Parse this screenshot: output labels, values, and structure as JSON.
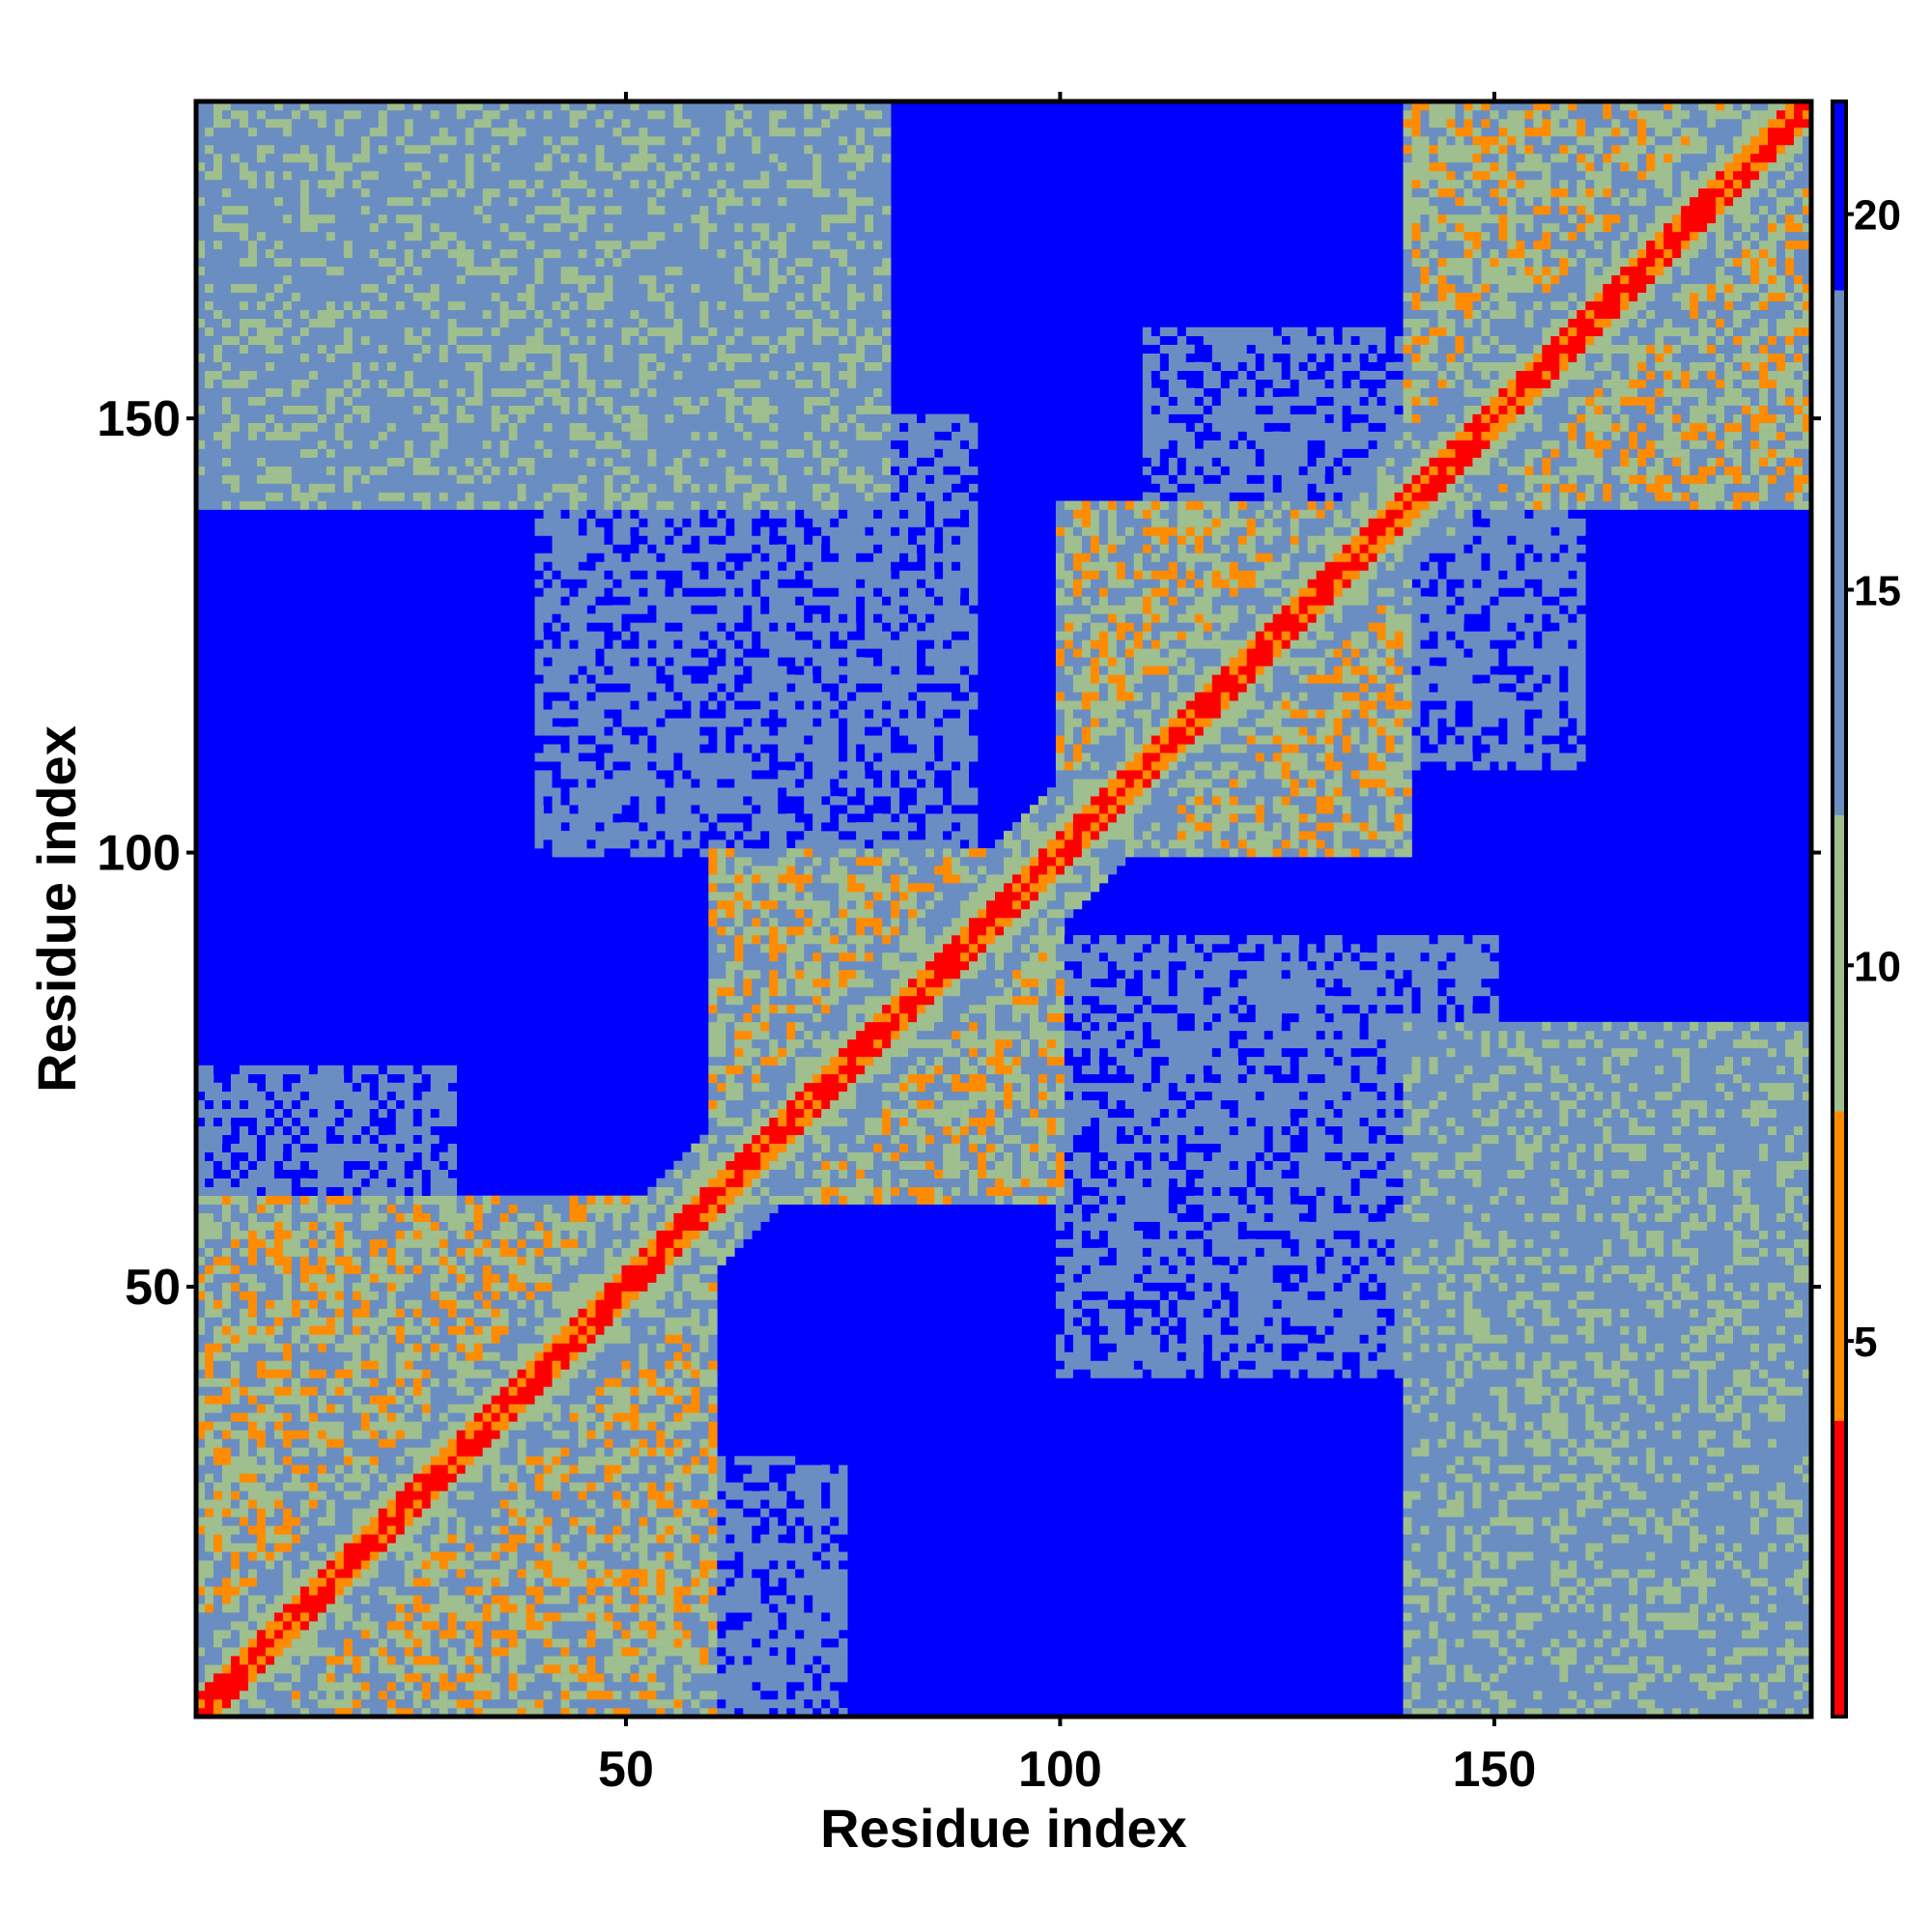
{
  "chart_data": {
    "type": "heatmap",
    "title": "",
    "xlabel": "Residue index",
    "ylabel": "Residue index",
    "xlim": [
      1,
      186
    ],
    "ylim": [
      1,
      186
    ],
    "xticks": [
      50,
      100,
      150
    ],
    "yticks": [
      50,
      100,
      150
    ],
    "colorbar": {
      "range": [
        0,
        21.5
      ],
      "ticks": [
        5,
        10,
        15,
        20
      ],
      "colors": {
        "close": "#ff0000",
        "near": "#ff8c00",
        "mid": "#9fbf8f",
        "far": "#6a8ec2",
        "background": "#0000ff"
      }
    },
    "diagonal_distance": 0,
    "max_distance_shown": 21.5,
    "contact_regions": [
      {
        "x": [
          1,
          60
        ],
        "y": [
          1,
          60
        ],
        "level": "dense"
      },
      {
        "x": [
          60,
          100
        ],
        "y": [
          60,
          100
        ],
        "level": "dense"
      },
      {
        "x": [
          100,
          140
        ],
        "y": [
          100,
          140
        ],
        "level": "dense"
      },
      {
        "x": [
          140,
          186
        ],
        "y": [
          140,
          186
        ],
        "level": "dense"
      },
      {
        "x": [
          1,
          80
        ],
        "y": [
          140,
          186
        ],
        "level": "medium"
      },
      {
        "x": [
          140,
          186
        ],
        "y": [
          1,
          80
        ],
        "level": "medium"
      },
      {
        "x": [
          40,
          90
        ],
        "y": [
          100,
          150
        ],
        "level": "sparse"
      },
      {
        "x": [
          100,
          150
        ],
        "y": [
          40,
          90
        ],
        "level": "sparse"
      },
      {
        "x": [
          110,
          140
        ],
        "y": [
          130,
          160
        ],
        "level": "sparse"
      },
      {
        "x": [
          130,
          160
        ],
        "y": [
          110,
          140
        ],
        "level": "sparse"
      },
      {
        "x": [
          1,
          30
        ],
        "y": [
          60,
          75
        ],
        "level": "sparse"
      },
      {
        "x": [
          60,
          75
        ],
        "y": [
          1,
          30
        ],
        "level": "sparse"
      }
    ]
  }
}
